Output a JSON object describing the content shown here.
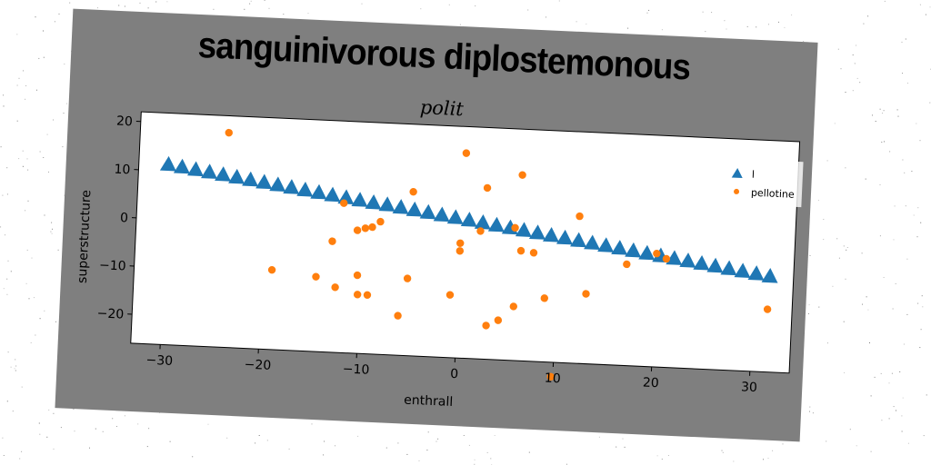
{
  "figure": {
    "suptitle": "sanguinivorous diplostemonous",
    "background_color": "#7f7f7f"
  },
  "chart_data": {
    "type": "scatter",
    "title": "polit",
    "xlabel": "enthrall",
    "ylabel": "superstructure",
    "xlim": [
      -33,
      34
    ],
    "ylim": [
      -26,
      22
    ],
    "xticks": [
      -30,
      -20,
      -10,
      0,
      10,
      20,
      30
    ],
    "xtick_labels": [
      "−30",
      "−20",
      "−10",
      "0",
      "10",
      "20",
      "30"
    ],
    "yticks": [
      -20,
      -10,
      0,
      10,
      20
    ],
    "ytick_labels": [
      "−20",
      "−10",
      "0",
      "10",
      "20"
    ],
    "legend_position": "top-right",
    "series": [
      {
        "name": "l",
        "marker": "triangle",
        "color": "#1f77b4",
        "x": [
          -30.0,
          -28.6,
          -27.2,
          -25.8,
          -24.4,
          -23.0,
          -21.6,
          -20.2,
          -18.8,
          -17.4,
          -16.0,
          -14.6,
          -13.2,
          -11.8,
          -10.4,
          -9.0,
          -7.6,
          -6.2,
          -4.8,
          -3.4,
          -2.0,
          -0.6,
          0.8,
          2.2,
          3.6,
          5.0,
          6.4,
          7.8,
          9.2,
          10.6,
          12.0,
          13.4,
          14.8,
          16.2,
          17.6,
          19.0,
          20.4,
          21.8,
          23.2,
          24.6,
          26.0,
          27.4,
          28.8,
          30.2,
          31.6
        ],
        "y": [
          11.4,
          11.0,
          10.6,
          10.2,
          9.8,
          9.4,
          9.0,
          8.6,
          8.2,
          7.8,
          7.4,
          7.0,
          6.6,
          6.2,
          5.8,
          5.4,
          5.1,
          4.7,
          4.3,
          3.9,
          3.5,
          3.1,
          2.7,
          2.3,
          1.9,
          1.5,
          1.1,
          0.7,
          0.3,
          -0.1,
          -0.5,
          -0.9,
          -1.3,
          -1.7,
          -2.1,
          -2.5,
          -2.9,
          -3.3,
          -3.7,
          -4.1,
          -4.5,
          -4.9,
          -5.3,
          -5.7,
          -6.1
        ]
      },
      {
        "name": "pellotine",
        "marker": "circle",
        "color": "#ff7f0e",
        "x": [
          -24.0,
          -19.0,
          -14.5,
          -13.0,
          -12.5,
          -12.0,
          -10.5,
          -10.3,
          -10.2,
          -9.7,
          -9.2,
          -9.0,
          -8.2,
          -6.0,
          -5.2,
          -5.0,
          -0.8,
          0.0,
          0.0,
          0.2,
          2.0,
          2.5,
          3.0,
          4.2,
          5.5,
          5.7,
          6.0,
          6.2,
          7.5,
          8.8,
          9.8,
          12.0,
          13.0,
          17.0,
          20.0,
          21.0,
          31.5
        ],
        "y": [
          18.5,
          -9.5,
          -10.5,
          -3.0,
          -12.5,
          5.0,
          -0.5,
          -9.8,
          -13.8,
          0.0,
          -13.8,
          0.3,
          1.5,
          -17.8,
          -10.0,
          8.0,
          -13.0,
          -2.2,
          -3.8,
          16.5,
          0.5,
          9.5,
          -19.0,
          -17.8,
          1.5,
          -14.8,
          12.5,
          -3.2,
          -3.5,
          -12.8,
          -29.0,
          4.5,
          -11.5,
          -5.0,
          -2.5,
          -3.5,
          -13.0
        ]
      }
    ]
  }
}
